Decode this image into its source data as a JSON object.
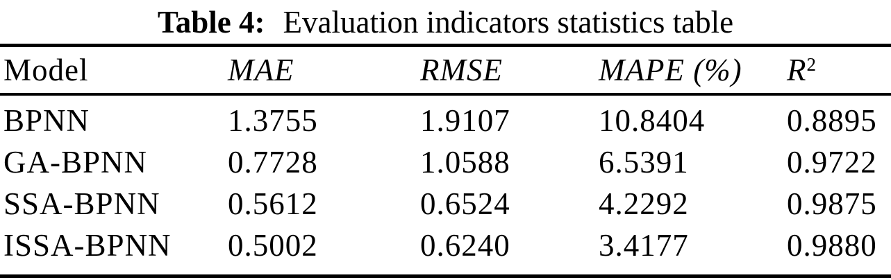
{
  "page": {
    "background_color": "#ffffff",
    "text_color": "#000000",
    "rule_color": "#000000"
  },
  "caption": {
    "label": "Table 4:",
    "text": "Evaluation indicators statistics table"
  },
  "table": {
    "columns": [
      {
        "label": "Model",
        "italic": false
      },
      {
        "label": "MAE",
        "italic": true
      },
      {
        "label": "RMSE",
        "italic": true
      },
      {
        "label": "MAPE (%)",
        "italic": true
      },
      {
        "label": "R",
        "sup": "2",
        "italic": true
      }
    ],
    "rows": [
      {
        "model": "BPNN",
        "mae": "1.3755",
        "rmse": "1.9107",
        "mape": "10.8404",
        "r2": "0.8895"
      },
      {
        "model": "GA-BPNN",
        "mae": "0.7728",
        "rmse": "1.0588",
        "mape": "6.5391",
        "r2": "0.9722"
      },
      {
        "model": "SSA-BPNN",
        "mae": "0.5612",
        "rmse": "0.6524",
        "mape": "4.2292",
        "r2": "0.9875"
      },
      {
        "model": "ISSA-BPNN",
        "mae": "0.5002",
        "rmse": "0.6240",
        "mape": "3.4177",
        "r2": "0.9880"
      }
    ]
  }
}
